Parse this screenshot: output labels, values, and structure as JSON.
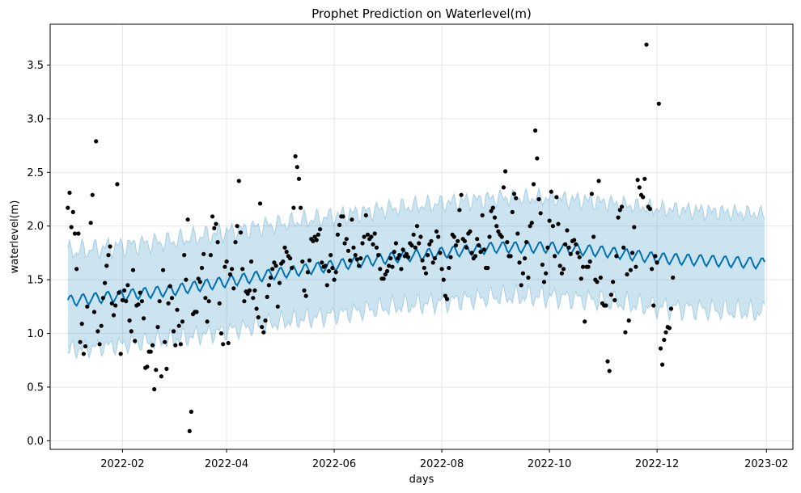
{
  "chart_data": {
    "type": "line",
    "title": "Prophet Prediction on Waterlevel(m)",
    "xlabel": "days",
    "ylabel": "waterlevel(m)",
    "x_ticks": [
      "2022-02",
      "2022-04",
      "2022-06",
      "2022-08",
      "2022-10",
      "2022-12",
      "2023-02"
    ],
    "y_ticks": [
      0.0,
      0.5,
      1.0,
      1.5,
      2.0,
      2.5,
      3.0,
      3.5
    ],
    "y_tick_labels": [
      "0.0",
      "0.5",
      "1.0",
      "1.5",
      "2.0",
      "2.5",
      "3.0",
      "3.5"
    ],
    "xlim": [
      "2021-12-22",
      "2023-02-16"
    ],
    "ylim": [
      -0.08,
      3.88
    ],
    "grid": true,
    "colors": {
      "forecast_line": "#0072B2",
      "uncertainty_band": "#0072B2",
      "observed_points": "#000000",
      "grid": "#e6e6e6"
    },
    "forecast": {
      "start": "2022-01-01",
      "end": "2023-01-31",
      "trend_knots": [
        {
          "date": "2022-01-01",
          "value": 1.3
        },
        {
          "date": "2022-03-01",
          "value": 1.4
        },
        {
          "date": "2022-05-01",
          "value": 1.56
        },
        {
          "date": "2022-07-01",
          "value": 1.7
        },
        {
          "date": "2022-09-01",
          "value": 1.8
        },
        {
          "date": "2022-10-01",
          "value": 1.8
        },
        {
          "date": "2022-11-01",
          "value": 1.76
        },
        {
          "date": "2022-12-01",
          "value": 1.7
        },
        {
          "date": "2023-01-31",
          "value": 1.65
        }
      ],
      "weekly_amplitude": 0.05,
      "band_halfwidth": 0.46
    },
    "observed": [
      [
        "2022-01-01",
        2.17
      ],
      [
        "2022-01-02",
        2.31
      ],
      [
        "2022-01-03",
        1.99
      ],
      [
        "2022-01-04",
        2.13
      ],
      [
        "2022-01-05",
        1.93
      ],
      [
        "2022-01-06",
        1.6
      ],
      [
        "2022-01-07",
        1.93
      ],
      [
        "2022-01-08",
        0.92
      ],
      [
        "2022-01-09",
        1.09
      ],
      [
        "2022-01-10",
        0.81
      ],
      [
        "2022-01-11",
        0.88
      ],
      [
        "2022-01-12",
        1.25
      ],
      [
        "2022-01-14",
        2.03
      ],
      [
        "2022-01-15",
        2.29
      ],
      [
        "2022-01-16",
        1.2
      ],
      [
        "2022-01-17",
        2.79
      ],
      [
        "2022-01-18",
        1.02
      ],
      [
        "2022-01-19",
        0.9
      ],
      [
        "2022-01-20",
        1.07
      ],
      [
        "2022-01-21",
        1.33
      ],
      [
        "2022-01-22",
        1.47
      ],
      [
        "2022-01-23",
        1.63
      ],
      [
        "2022-01-24",
        1.73
      ],
      [
        "2022-01-25",
        1.81
      ],
      [
        "2022-01-26",
        1.28
      ],
      [
        "2022-01-27",
        1.17
      ],
      [
        "2022-01-28",
        1.26
      ],
      [
        "2022-01-29",
        2.39
      ],
      [
        "2022-01-30",
        1.38
      ],
      [
        "2022-01-31",
        0.81
      ],
      [
        "2022-02-01",
        1.31
      ],
      [
        "2022-02-02",
        1.4
      ],
      [
        "2022-02-03",
        1.3
      ],
      [
        "2022-02-04",
        1.45
      ],
      [
        "2022-02-05",
        1.12
      ],
      [
        "2022-02-06",
        1.02
      ],
      [
        "2022-02-07",
        1.59
      ],
      [
        "2022-02-08",
        0.93
      ],
      [
        "2022-02-09",
        1.26
      ],
      [
        "2022-02-10",
        1.27
      ],
      [
        "2022-02-11",
        1.38
      ],
      [
        "2022-02-12",
        1.3
      ],
      [
        "2022-02-13",
        1.14
      ],
      [
        "2022-02-14",
        0.68
      ],
      [
        "2022-02-15",
        0.69
      ],
      [
        "2022-02-16",
        0.83
      ],
      [
        "2022-02-17",
        0.83
      ],
      [
        "2022-02-18",
        0.89
      ],
      [
        "2022-02-19",
        0.48
      ],
      [
        "2022-02-20",
        0.66
      ],
      [
        "2022-02-21",
        1.06
      ],
      [
        "2022-02-22",
        1.3
      ],
      [
        "2022-02-23",
        0.6
      ],
      [
        "2022-02-24",
        1.59
      ],
      [
        "2022-02-25",
        0.92
      ],
      [
        "2022-02-26",
        0.67
      ],
      [
        "2022-02-27",
        1.28
      ],
      [
        "2022-02-28",
        1.44
      ],
      [
        "2022-03-01",
        1.33
      ],
      [
        "2022-03-02",
        1.02
      ],
      [
        "2022-03-03",
        0.89
      ],
      [
        "2022-03-04",
        1.22
      ],
      [
        "2022-03-05",
        1.07
      ],
      [
        "2022-03-06",
        0.9
      ],
      [
        "2022-03-07",
        1.11
      ],
      [
        "2022-03-08",
        1.73
      ],
      [
        "2022-03-09",
        1.5
      ],
      [
        "2022-03-10",
        2.06
      ],
      [
        "2022-03-11",
        0.09
      ],
      [
        "2022-03-12",
        0.27
      ],
      [
        "2022-03-13",
        1.18
      ],
      [
        "2022-03-14",
        1.2
      ],
      [
        "2022-03-15",
        1.2
      ],
      [
        "2022-03-16",
        1.51
      ],
      [
        "2022-03-17",
        1.48
      ],
      [
        "2022-03-18",
        1.61
      ],
      [
        "2022-03-19",
        1.74
      ],
      [
        "2022-03-20",
        1.33
      ],
      [
        "2022-03-21",
        1.11
      ],
      [
        "2022-03-22",
        1.3
      ],
      [
        "2022-03-23",
        1.73
      ],
      [
        "2022-03-24",
        2.09
      ],
      [
        "2022-03-25",
        1.98
      ],
      [
        "2022-03-26",
        2.02
      ],
      [
        "2022-03-27",
        1.85
      ],
      [
        "2022-03-28",
        1.28
      ],
      [
        "2022-03-29",
        1.0
      ],
      [
        "2022-03-30",
        0.9
      ],
      [
        "2022-03-31",
        1.62
      ],
      [
        "2022-04-01",
        1.67
      ],
      [
        "2022-04-02",
        0.91
      ],
      [
        "2022-04-03",
        1.55
      ],
      [
        "2022-04-04",
        1.6
      ],
      [
        "2022-04-05",
        1.42
      ],
      [
        "2022-04-06",
        1.85
      ],
      [
        "2022-04-07",
        2.0
      ],
      [
        "2022-04-08",
        2.42
      ],
      [
        "2022-04-09",
        1.94
      ],
      [
        "2022-04-10",
        1.6
      ],
      [
        "2022-04-11",
        1.3
      ],
      [
        "2022-04-12",
        1.39
      ],
      [
        "2022-04-13",
        1.37
      ],
      [
        "2022-04-14",
        1.4
      ],
      [
        "2022-04-15",
        1.67
      ],
      [
        "2022-04-16",
        1.33
      ],
      [
        "2022-04-17",
        1.4
      ],
      [
        "2022-04-18",
        1.23
      ],
      [
        "2022-04-19",
        1.15
      ],
      [
        "2022-04-20",
        2.21
      ],
      [
        "2022-04-21",
        1.06
      ],
      [
        "2022-04-22",
        1.01
      ],
      [
        "2022-04-23",
        1.12
      ],
      [
        "2022-04-24",
        1.34
      ],
      [
        "2022-04-25",
        1.45
      ],
      [
        "2022-04-26",
        1.52
      ],
      [
        "2022-04-27",
        1.6
      ],
      [
        "2022-04-28",
        1.66
      ],
      [
        "2022-04-29",
        1.63
      ],
      [
        "2022-04-30",
        1.25
      ],
      [
        "2022-05-01",
        1.47
      ],
      [
        "2022-05-02",
        1.65
      ],
      [
        "2022-05-03",
        1.67
      ],
      [
        "2022-05-04",
        1.8
      ],
      [
        "2022-05-05",
        1.76
      ],
      [
        "2022-05-06",
        1.72
      ],
      [
        "2022-05-07",
        1.7
      ],
      [
        "2022-05-08",
        1.61
      ],
      [
        "2022-05-09",
        2.17
      ],
      [
        "2022-05-10",
        2.65
      ],
      [
        "2022-05-11",
        2.55
      ],
      [
        "2022-05-12",
        2.44
      ],
      [
        "2022-05-13",
        2.17
      ],
      [
        "2022-05-14",
        1.67
      ],
      [
        "2022-05-15",
        1.4
      ],
      [
        "2022-05-16",
        1.35
      ],
      [
        "2022-05-17",
        1.57
      ],
      [
        "2022-05-18",
        1.68
      ],
      [
        "2022-05-19",
        1.88
      ],
      [
        "2022-05-20",
        1.86
      ],
      [
        "2022-05-21",
        1.9
      ],
      [
        "2022-05-22",
        1.87
      ],
      [
        "2022-05-23",
        1.92
      ],
      [
        "2022-05-24",
        1.97
      ],
      [
        "2022-05-25",
        1.66
      ],
      [
        "2022-05-26",
        1.62
      ],
      [
        "2022-05-27",
        1.63
      ],
      [
        "2022-05-28",
        1.45
      ],
      [
        "2022-05-29",
        1.58
      ],
      [
        "2022-05-30",
        1.73
      ],
      [
        "2022-05-31",
        1.61
      ],
      [
        "2022-06-01",
        1.5
      ],
      [
        "2022-06-02",
        1.57
      ],
      [
        "2022-06-03",
        1.92
      ],
      [
        "2022-06-04",
        2.01
      ],
      [
        "2022-06-05",
        2.09
      ],
      [
        "2022-06-06",
        2.09
      ],
      [
        "2022-06-07",
        1.84
      ],
      [
        "2022-06-08",
        1.88
      ],
      [
        "2022-06-09",
        1.77
      ],
      [
        "2022-06-10",
        1.68
      ],
      [
        "2022-06-11",
        2.06
      ],
      [
        "2022-06-12",
        1.8
      ],
      [
        "2022-06-13",
        1.73
      ],
      [
        "2022-06-14",
        1.69
      ],
      [
        "2022-06-15",
        1.63
      ],
      [
        "2022-06-16",
        1.7
      ],
      [
        "2022-06-17",
        1.84
      ],
      [
        "2022-06-18",
        1.9
      ],
      [
        "2022-06-19",
        2.1
      ],
      [
        "2022-06-20",
        1.92
      ],
      [
        "2022-06-21",
        1.88
      ],
      [
        "2022-06-22",
        1.9
      ],
      [
        "2022-06-23",
        1.83
      ],
      [
        "2022-06-24",
        1.93
      ],
      [
        "2022-06-25",
        1.8
      ],
      [
        "2022-06-26",
        1.73
      ],
      [
        "2022-06-27",
        1.6
      ],
      [
        "2022-06-28",
        1.51
      ],
      [
        "2022-06-29",
        1.51
      ],
      [
        "2022-06-30",
        1.55
      ],
      [
        "2022-07-01",
        1.58
      ],
      [
        "2022-07-02",
        1.63
      ],
      [
        "2022-07-03",
        1.7
      ],
      [
        "2022-07-04",
        1.62
      ],
      [
        "2022-07-05",
        1.76
      ],
      [
        "2022-07-06",
        1.84
      ],
      [
        "2022-07-07",
        1.7
      ],
      [
        "2022-07-08",
        1.73
      ],
      [
        "2022-07-09",
        1.6
      ],
      [
        "2022-07-10",
        1.78
      ],
      [
        "2022-07-11",
        1.72
      ],
      [
        "2022-07-12",
        1.74
      ],
      [
        "2022-07-13",
        1.71
      ],
      [
        "2022-07-14",
        1.84
      ],
      [
        "2022-07-15",
        1.82
      ],
      [
        "2022-07-16",
        1.92
      ],
      [
        "2022-07-17",
        1.8
      ],
      [
        "2022-07-18",
        2.0
      ],
      [
        "2022-07-19",
        1.84
      ],
      [
        "2022-07-20",
        1.9
      ],
      [
        "2022-07-21",
        1.68
      ],
      [
        "2022-07-22",
        1.61
      ],
      [
        "2022-07-23",
        1.56
      ],
      [
        "2022-07-24",
        1.73
      ],
      [
        "2022-07-25",
        1.83
      ],
      [
        "2022-07-26",
        1.86
      ],
      [
        "2022-07-27",
        1.66
      ],
      [
        "2022-07-28",
        1.7
      ],
      [
        "2022-07-29",
        1.95
      ],
      [
        "2022-07-30",
        1.9
      ],
      [
        "2022-07-31",
        1.75
      ],
      [
        "2022-08-01",
        1.6
      ],
      [
        "2022-08-02",
        1.5
      ],
      [
        "2022-08-03",
        1.35
      ],
      [
        "2022-08-04",
        1.32
      ],
      [
        "2022-08-05",
        1.61
      ],
      [
        "2022-08-06",
        1.71
      ],
      [
        "2022-08-07",
        1.92
      ],
      [
        "2022-08-08",
        1.9
      ],
      [
        "2022-08-09",
        1.82
      ],
      [
        "2022-08-10",
        1.86
      ],
      [
        "2022-08-11",
        2.15
      ],
      [
        "2022-08-12",
        2.29
      ],
      [
        "2022-08-13",
        1.88
      ],
      [
        "2022-08-14",
        1.86
      ],
      [
        "2022-08-15",
        1.8
      ],
      [
        "2022-08-16",
        1.93
      ],
      [
        "2022-08-17",
        1.95
      ],
      [
        "2022-08-18",
        1.75
      ],
      [
        "2022-08-19",
        1.7
      ],
      [
        "2022-08-20",
        1.72
      ],
      [
        "2022-08-21",
        1.88
      ],
      [
        "2022-08-22",
        1.82
      ],
      [
        "2022-08-23",
        1.76
      ],
      [
        "2022-08-24",
        2.1
      ],
      [
        "2022-08-25",
        1.78
      ],
      [
        "2022-08-26",
        1.61
      ],
      [
        "2022-08-27",
        1.61
      ],
      [
        "2022-08-28",
        1.9
      ],
      [
        "2022-08-29",
        2.14
      ],
      [
        "2022-08-30",
        2.17
      ],
      [
        "2022-08-31",
        2.08
      ],
      [
        "2022-09-01",
        2.0
      ],
      [
        "2022-09-02",
        1.95
      ],
      [
        "2022-09-03",
        1.92
      ],
      [
        "2022-09-04",
        1.9
      ],
      [
        "2022-09-05",
        2.36
      ],
      [
        "2022-09-06",
        2.51
      ],
      [
        "2022-09-07",
        1.85
      ],
      [
        "2022-09-08",
        1.72
      ],
      [
        "2022-09-09",
        1.72
      ],
      [
        "2022-09-10",
        2.13
      ],
      [
        "2022-09-11",
        2.3
      ],
      [
        "2022-09-12",
        2.26
      ],
      [
        "2022-09-13",
        1.93
      ],
      [
        "2022-09-14",
        1.66
      ],
      [
        "2022-09-15",
        1.45
      ],
      [
        "2022-09-16",
        1.56
      ],
      [
        "2022-09-17",
        1.7
      ],
      [
        "2022-09-18",
        1.85
      ],
      [
        "2022-09-19",
        1.52
      ],
      [
        "2022-09-20",
        2.0
      ],
      [
        "2022-09-21",
        2.03
      ],
      [
        "2022-09-22",
        2.39
      ],
      [
        "2022-09-23",
        2.89
      ],
      [
        "2022-09-24",
        2.63
      ],
      [
        "2022-09-25",
        2.25
      ],
      [
        "2022-09-26",
        2.12
      ],
      [
        "2022-09-27",
        1.64
      ],
      [
        "2022-09-28",
        1.48
      ],
      [
        "2022-09-29",
        1.56
      ],
      [
        "2022-09-30",
        1.8
      ],
      [
        "2022-10-01",
        2.05
      ],
      [
        "2022-10-02",
        2.32
      ],
      [
        "2022-10-03",
        2.0
      ],
      [
        "2022-10-04",
        1.72
      ],
      [
        "2022-10-05",
        2.27
      ],
      [
        "2022-10-06",
        2.02
      ],
      [
        "2022-10-07",
        1.63
      ],
      [
        "2022-10-08",
        1.56
      ],
      [
        "2022-10-09",
        1.6
      ],
      [
        "2022-10-10",
        1.83
      ],
      [
        "2022-10-11",
        1.96
      ],
      [
        "2022-10-12",
        1.8
      ],
      [
        "2022-10-13",
        1.74
      ],
      [
        "2022-10-14",
        1.86
      ],
      [
        "2022-10-15",
        1.87
      ],
      [
        "2022-10-16",
        1.83
      ],
      [
        "2022-10-17",
        1.75
      ],
      [
        "2022-10-18",
        1.71
      ],
      [
        "2022-10-19",
        1.51
      ],
      [
        "2022-10-20",
        1.62
      ],
      [
        "2022-10-21",
        1.11
      ],
      [
        "2022-10-22",
        1.62
      ],
      [
        "2022-10-23",
        1.62
      ],
      [
        "2022-10-24",
        1.67
      ],
      [
        "2022-10-25",
        2.3
      ],
      [
        "2022-10-26",
        1.9
      ],
      [
        "2022-10-27",
        1.5
      ],
      [
        "2022-10-28",
        1.48
      ],
      [
        "2022-10-29",
        2.42
      ],
      [
        "2022-10-30",
        1.52
      ],
      [
        "2022-10-31",
        1.28
      ],
      [
        "2022-11-01",
        1.26
      ],
      [
        "2022-11-02",
        1.26
      ],
      [
        "2022-11-03",
        0.74
      ],
      [
        "2022-11-04",
        0.65
      ],
      [
        "2022-11-05",
        1.36
      ],
      [
        "2022-11-06",
        1.48
      ],
      [
        "2022-11-07",
        1.31
      ],
      [
        "2022-11-08",
        1.72
      ],
      [
        "2022-11-09",
        2.08
      ],
      [
        "2022-11-10",
        2.15
      ],
      [
        "2022-11-11",
        2.18
      ],
      [
        "2022-11-12",
        1.8
      ],
      [
        "2022-11-13",
        1.01
      ],
      [
        "2022-11-14",
        1.55
      ],
      [
        "2022-11-15",
        1.12
      ],
      [
        "2022-11-16",
        1.59
      ],
      [
        "2022-11-17",
        1.75
      ],
      [
        "2022-11-18",
        1.99
      ],
      [
        "2022-11-19",
        1.62
      ],
      [
        "2022-11-20",
        2.43
      ],
      [
        "2022-11-21",
        2.36
      ],
      [
        "2022-11-22",
        2.29
      ],
      [
        "2022-11-23",
        2.27
      ],
      [
        "2022-11-24",
        2.44
      ],
      [
        "2022-11-25",
        3.69
      ],
      [
        "2022-11-26",
        2.18
      ],
      [
        "2022-11-27",
        2.16
      ],
      [
        "2022-11-28",
        1.6
      ],
      [
        "2022-11-29",
        1.26
      ],
      [
        "2022-11-30",
        1.72
      ],
      [
        "2022-12-01",
        1.66
      ],
      [
        "2022-12-02",
        3.14
      ],
      [
        "2022-12-03",
        0.86
      ],
      [
        "2022-12-04",
        0.71
      ],
      [
        "2022-12-05",
        0.94
      ],
      [
        "2022-12-06",
        1.01
      ],
      [
        "2022-12-07",
        1.06
      ],
      [
        "2022-12-08",
        1.05
      ],
      [
        "2022-12-09",
        1.23
      ],
      [
        "2022-12-10",
        1.52
      ]
    ]
  }
}
